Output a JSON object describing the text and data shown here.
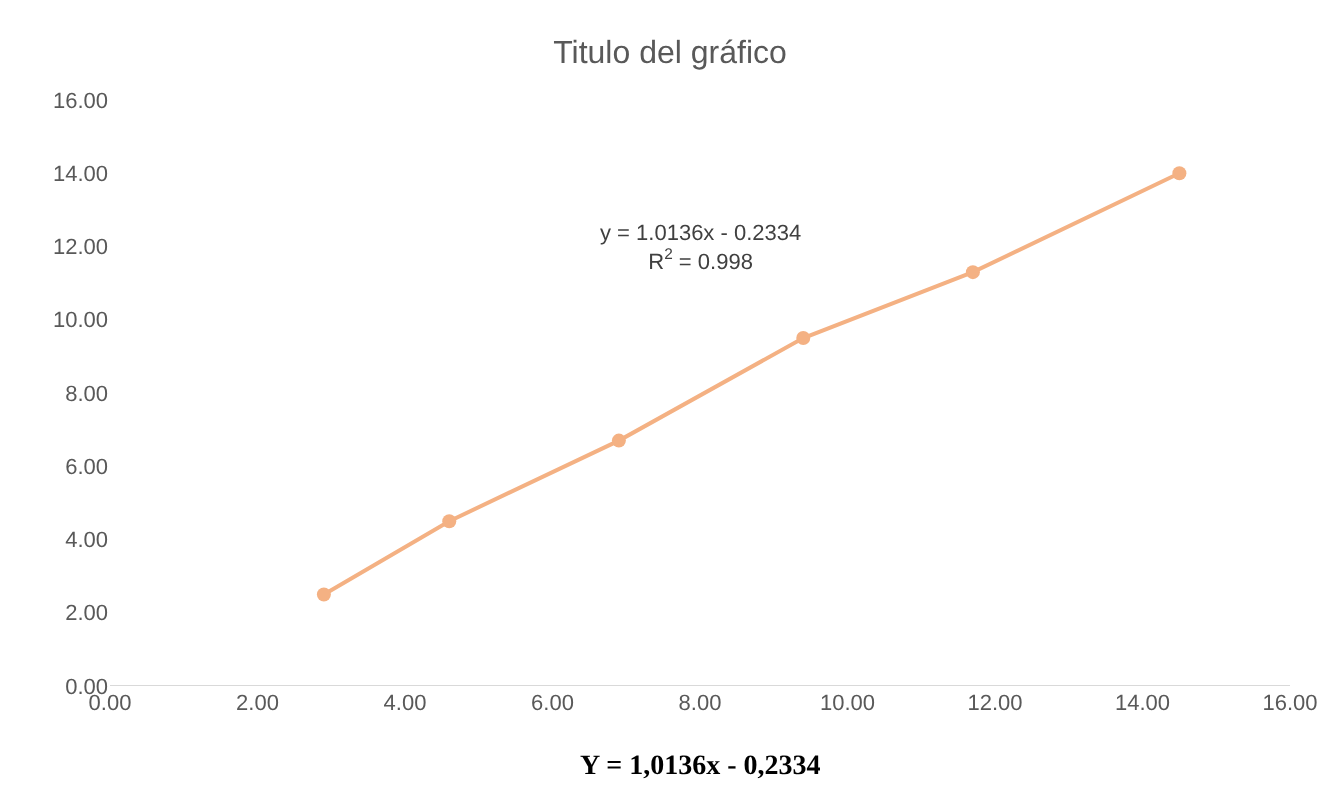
{
  "chart_data": {
    "type": "line",
    "title": "Titulo del gráfico",
    "x": [
      2.9,
      4.6,
      6.9,
      9.4,
      11.7,
      14.5
    ],
    "series": [
      {
        "color": "#f4b183",
        "values": [
          2.5,
          4.5,
          6.7,
          9.5,
          11.3,
          14.0
        ]
      }
    ],
    "marker": "circle",
    "line_style": "solid",
    "xlim": [
      0,
      16
    ],
    "xticks": [
      {
        "value": 0,
        "label": "0.00"
      },
      {
        "value": 2,
        "label": "2.00"
      },
      {
        "value": 4,
        "label": "4.00"
      },
      {
        "value": 6,
        "label": "6.00"
      },
      {
        "value": 8,
        "label": "8.00"
      },
      {
        "value": 10,
        "label": "10.00"
      },
      {
        "value": 12,
        "label": "12.00"
      },
      {
        "value": 14,
        "label": "14.00"
      },
      {
        "value": 16,
        "label": "16.00"
      }
    ],
    "ylim": [
      0,
      16
    ],
    "yticks": [
      {
        "value": 0,
        "label": "0.00"
      },
      {
        "value": 2,
        "label": "2.00"
      },
      {
        "value": 4,
        "label": "4.00"
      },
      {
        "value": 6,
        "label": "6.00"
      },
      {
        "value": 8,
        "label": "8.00"
      },
      {
        "value": 10,
        "label": "10.00"
      },
      {
        "value": 12,
        "label": "12.00"
      },
      {
        "value": 14,
        "label": "14.00"
      },
      {
        "value": 16,
        "label": "16.00"
      }
    ],
    "grid": false,
    "annotations": [
      "y = 1.0136x - 0.2334\nR$^{2}$ = 0.998",
      "Y = 1,0136x - 0,2334"
    ]
  }
}
